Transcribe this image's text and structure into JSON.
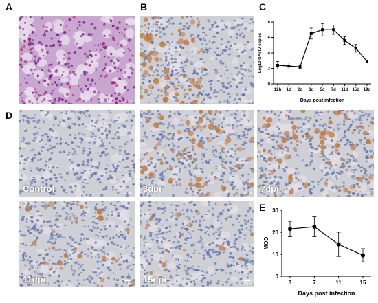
{
  "labels": {
    "A": "A",
    "B": "B",
    "C": "C",
    "D": "D",
    "E": "E"
  },
  "panels": {
    "control": "Control",
    "dpi3": "3dpi",
    "dpi7": "7dpi",
    "dpi11": "11dpi",
    "dpi15": "15dpi",
    "scale": "20 µm"
  },
  "colors": {
    "he_bg": "#c9a6cf",
    "ihc_bg": "#cfcfd6",
    "nucleus": "#5b6ea8",
    "brown": "#c27a3c",
    "he_nucleus": "#7b2a86"
  },
  "chart_data": [
    {
      "type": "line",
      "id": "C",
      "categories": [
        "12h",
        "1d",
        "2d",
        "3d",
        "5d",
        "7d",
        "11d",
        "15d",
        "19d"
      ],
      "series": [
        {
          "values": [
            2.4,
            2.3,
            2.2,
            6.5,
            7.0,
            7.0,
            5.6,
            4.6,
            2.9
          ],
          "errors": [
            0.5,
            0.4,
            0.2,
            0.7,
            0.8,
            0.6,
            0.5,
            0.5,
            0.1
          ]
        }
      ],
      "ylabel": "Log10 GAstV copies",
      "xlabel": "Days post infection",
      "ylim": [
        0,
        8
      ],
      "yticks": [
        0,
        2,
        4,
        6,
        8
      ]
    },
    {
      "type": "line",
      "id": "E",
      "categories": [
        "3",
        "7",
        "11",
        "15"
      ],
      "series": [
        {
          "values": [
            21.5,
            22.5,
            14.5,
            9.5
          ],
          "errors": [
            3.5,
            4.5,
            5.5,
            3.0
          ]
        }
      ],
      "ylabel": "MOD",
      "xlabel": "Days post infection",
      "ylim": [
        0,
        30
      ],
      "yticks": [
        0,
        10,
        20,
        30
      ]
    }
  ]
}
